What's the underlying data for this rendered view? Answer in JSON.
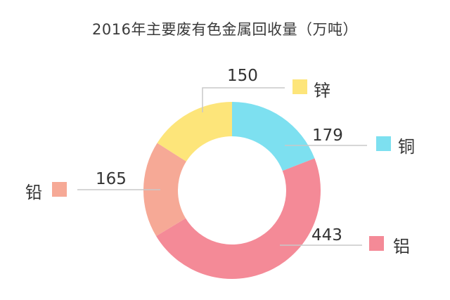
{
  "title": "2016年主要废有色金属回收量（万吨）",
  "chart_data": {
    "type": "pie",
    "subtype": "donut",
    "title": "2016年主要废有色金属回收量（万吨）",
    "unit": "万吨",
    "categories": [
      "铜",
      "铝",
      "铅",
      "锌"
    ],
    "values": [
      179,
      443,
      165,
      150
    ],
    "colors": [
      "#7de0f0",
      "#f48a97",
      "#f6a996",
      "#fde57a"
    ],
    "series": [
      {
        "name": "铜",
        "value": 179,
        "color": "#7de0f0"
      },
      {
        "name": "铝",
        "value": 443,
        "color": "#f48a97"
      },
      {
        "name": "铅",
        "value": 165,
        "color": "#f6a996"
      },
      {
        "name": "锌",
        "value": 150,
        "color": "#fde57a"
      }
    ],
    "legend_position": "beside-labels",
    "start_angle": "top, clockwise"
  },
  "labels": {
    "copper": {
      "value": "179",
      "name": "铜"
    },
    "aluminum": {
      "value": "443",
      "name": "铝"
    },
    "lead": {
      "value": "165",
      "name": "铅"
    },
    "zinc": {
      "value": "150",
      "name": "锌"
    }
  }
}
